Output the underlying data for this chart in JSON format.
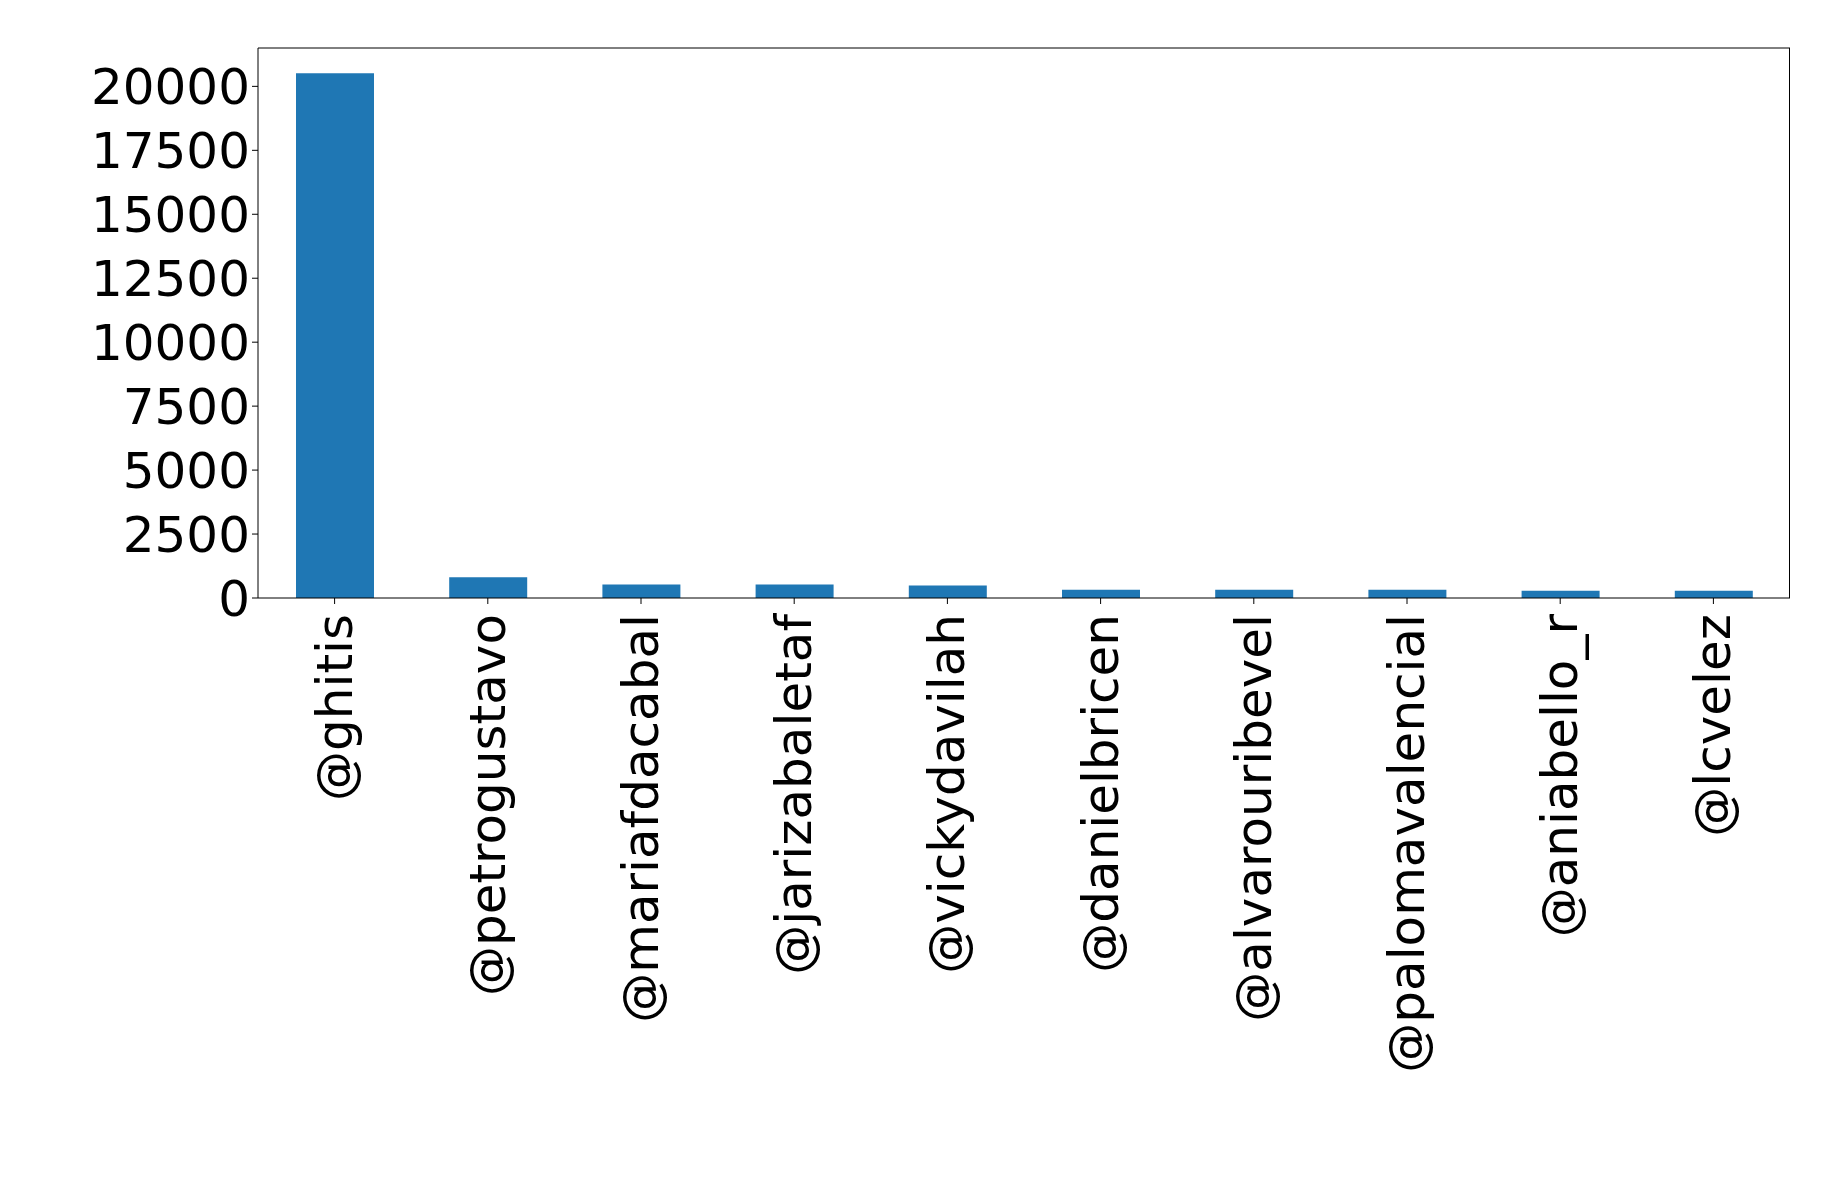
{
  "chart_data": {
    "type": "bar",
    "categories": [
      "@ghitis",
      "@petrogustavo",
      "@mariafdacabal",
      "@jarizabaletaf",
      "@vickydavilah",
      "@danielbricen",
      "@alvarouribevel",
      "@palomavalencial",
      "@aniabello_r",
      "@lcvelez"
    ],
    "values": [
      20510,
      810,
      530,
      530,
      490,
      320,
      320,
      320,
      280,
      280
    ],
    "color": "#1f77b4",
    "ylim": [
      0,
      21500
    ],
    "yticks": [
      0,
      2500,
      5000,
      7500,
      10000,
      12500,
      15000,
      17500,
      20000
    ],
    "grid": false
  }
}
